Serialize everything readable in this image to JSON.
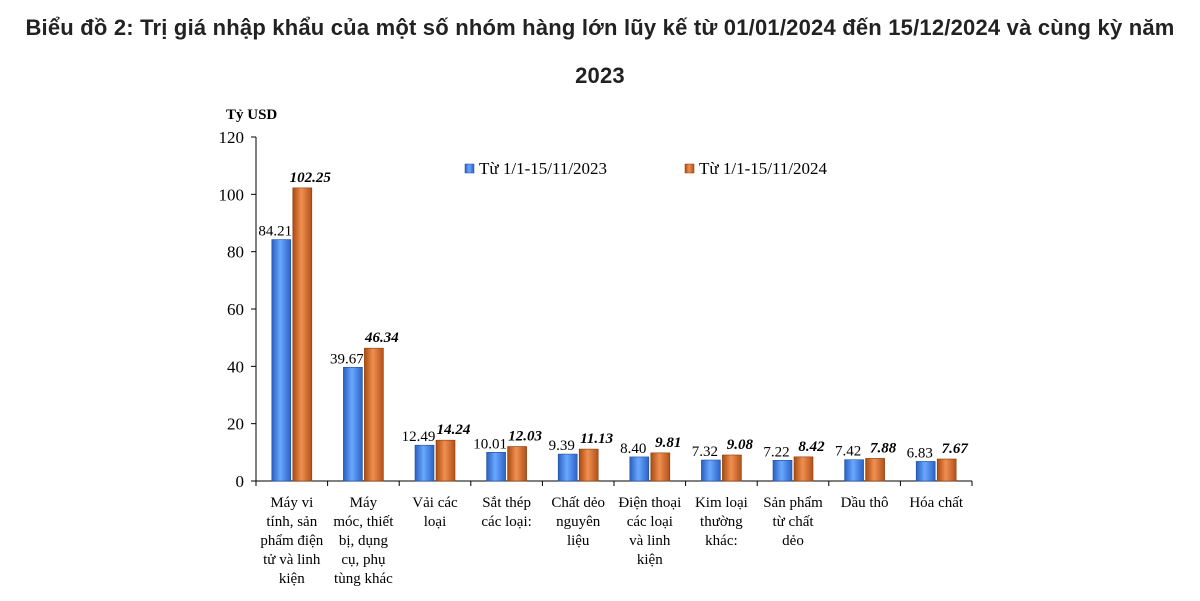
{
  "chart_data": {
    "type": "bar",
    "title": "Biểu đồ 2: Trị giá nhập khẩu của một số nhóm hàng lớn lũy kế từ 01/01/2024 đến 15/12/2024 và cùng kỳ năm 2023",
    "ylabel": "Tỷ USD",
    "xlabel": "",
    "ylim": [
      0,
      120
    ],
    "yticks": [
      "0",
      "20",
      "40",
      "60",
      "80",
      "100",
      "120"
    ],
    "legend_position": "top-right",
    "grid": false,
    "categories": [
      [
        "Máy vi",
        "tính, sản",
        "phẩm điện",
        "tử và linh",
        "kiện"
      ],
      [
        "Máy",
        "móc, thiết",
        "bị, dụng",
        "cụ, phụ",
        "tùng khác"
      ],
      [
        "Vải các",
        "loại"
      ],
      [
        "Sắt thép",
        "các loại:"
      ],
      [
        "Chất dẻo",
        "nguyên",
        "liệu"
      ],
      [
        "Điện thoại",
        "các loại",
        "và linh",
        "kiện"
      ],
      [
        "Kim loại",
        "thường",
        "khác:"
      ],
      [
        "Sản phẩm",
        "từ chất",
        "dẻo"
      ],
      [
        "Dầu thô"
      ],
      [
        "Hóa chất"
      ]
    ],
    "series": [
      {
        "name": "Từ 1/1-15/11/2023",
        "color": "#3d7fe6",
        "values": [
          84.21,
          39.67,
          12.49,
          10.01,
          9.39,
          8.4,
          7.32,
          7.22,
          7.42,
          6.83
        ],
        "labels": [
          "84.21",
          "39.67",
          "12.49",
          "10.01",
          "9.39",
          "8.40",
          "7.32",
          "7.22",
          "7.42",
          "6.83"
        ]
      },
      {
        "name": "Từ 1/1-15/11/2024",
        "color": "#d2691e",
        "values": [
          102.25,
          46.34,
          14.24,
          12.03,
          11.13,
          9.81,
          9.08,
          8.42,
          7.88,
          7.67
        ],
        "labels": [
          "102.25",
          "46.34",
          "14.24",
          "12.03",
          "11.13",
          "9.81",
          "9.08",
          "8.42",
          "7.88",
          "7.67"
        ]
      }
    ]
  }
}
